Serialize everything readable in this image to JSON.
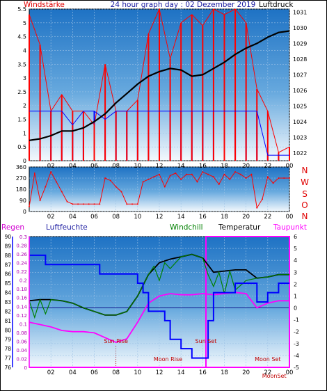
{
  "chart_data": [
    {
      "type": "line",
      "title": "24 hour graph day : 02 Dezember 2019",
      "left_axis_label": "Windstärke",
      "right_axis_label": "Luftdruck",
      "left_ylim": [
        0,
        5.5
      ],
      "left_ticks": [
        "0",
        "0.5",
        "1",
        "1.5",
        "2",
        "2.5",
        "3",
        "3.5",
        "4",
        "4.5",
        "5",
        "5.5"
      ],
      "right_ylim": [
        1021.5,
        1031.2
      ],
      "right_ticks": [
        "1022",
        "1023",
        "1024",
        "1025",
        "1026",
        "1027",
        "1028",
        "1029",
        "1030",
        "1031"
      ],
      "x_ticks": [
        "02",
        "04",
        "06",
        "08",
        "10",
        "12",
        "14",
        "16",
        "18",
        "20",
        "22",
        "00"
      ],
      "xlim_hours": [
        0,
        24
      ],
      "series": [
        {
          "color": "#000000",
          "axis": "right",
          "x": [
            0,
            1,
            2,
            3,
            4,
            5,
            6,
            7,
            8,
            9,
            10,
            11,
            12,
            13,
            14,
            15,
            16,
            17,
            18,
            19,
            20,
            21,
            22,
            23,
            24
          ],
          "y": [
            1022.8,
            1022.9,
            1023.1,
            1023.4,
            1023.4,
            1023.6,
            1024.0,
            1024.5,
            1025.2,
            1025.8,
            1026.4,
            1026.9,
            1027.2,
            1027.4,
            1027.3,
            1026.9,
            1027.0,
            1027.4,
            1027.8,
            1028.3,
            1028.7,
            1029.0,
            1029.4,
            1029.7,
            1029.8
          ]
        },
        {
          "color": "#ff0000",
          "axis": "left",
          "x": [
            0,
            1,
            2,
            3,
            4,
            5,
            6,
            7,
            8,
            9,
            10,
            11,
            12,
            13,
            14,
            15,
            16,
            17,
            18,
            19,
            20,
            21,
            22,
            23,
            24
          ],
          "y": [
            5.3,
            4.2,
            1.8,
            2.4,
            1.8,
            1.8,
            1.3,
            3.5,
            1.8,
            1.8,
            2.2,
            4.6,
            5.5,
            3.7,
            5.0,
            5.3,
            4.9,
            5.5,
            5.3,
            5.5,
            5.0,
            2.6,
            1.8,
            0.3,
            0.5
          ]
        },
        {
          "color": "#0000ff",
          "axis": "left",
          "x": [
            0,
            1,
            2,
            3,
            4,
            5,
            6,
            7,
            8,
            9,
            10,
            11,
            12,
            13,
            14,
            15,
            16,
            17,
            18,
            19,
            20,
            21,
            22,
            23,
            24
          ],
          "y": [
            1.8,
            1.8,
            1.8,
            1.8,
            1.3,
            1.8,
            1.8,
            1.5,
            1.8,
            1.8,
            1.8,
            1.8,
            1.8,
            1.8,
            1.8,
            1.8,
            1.8,
            1.8,
            1.8,
            1.8,
            1.8,
            1.8,
            0.2,
            0.2,
            0.2
          ]
        }
      ]
    },
    {
      "type": "line",
      "left_ylim": [
        0,
        360
      ],
      "left_ticks": [
        "0",
        "90",
        "180",
        "270",
        "360"
      ],
      "right_labels": [
        "N",
        "W",
        "S",
        "O",
        "N"
      ],
      "x_ticks": [
        "02",
        "04",
        "06",
        "08",
        "10",
        "12",
        "14",
        "16",
        "18",
        "20",
        "22",
        "00"
      ],
      "xlim_hours": [
        0,
        24
      ],
      "series": [
        {
          "color": "#ff0000",
          "x": [
            0,
            0.5,
            1,
            1.5,
            2,
            2.5,
            3,
            3.5,
            4,
            4.5,
            5,
            5.5,
            6,
            6.5,
            7,
            7.5,
            8,
            8.5,
            9,
            9.5,
            10,
            10.5,
            11,
            11.5,
            12,
            12.5,
            13,
            13.5,
            14,
            14.5,
            15,
            15.5,
            16,
            16.5,
            17,
            17.5,
            18,
            18.5,
            19,
            19.5,
            20,
            20.5,
            21,
            21.5,
            22,
            22.5,
            23,
            23.5,
            24
          ],
          "y": [
            40,
            310,
            90,
            200,
            320,
            240,
            160,
            80,
            60,
            60,
            60,
            60,
            60,
            60,
            270,
            250,
            200,
            160,
            60,
            60,
            60,
            240,
            260,
            280,
            300,
            200,
            290,
            310,
            260,
            300,
            300,
            240,
            320,
            300,
            280,
            220,
            300,
            260,
            320,
            300,
            270,
            300,
            30,
            100,
            280,
            230,
            270,
            270,
            270
          ]
        }
      ]
    },
    {
      "type": "line",
      "legend": [
        "Regen",
        "Luftfeuchte",
        "Windchill",
        "Temperatur",
        "Taupunkt"
      ],
      "rain_ylim": [
        0,
        0.3
      ],
      "rain_ticks": [
        "0",
        "0.02",
        "0.04",
        "0.06",
        "0.08",
        "0.1",
        "0.12",
        "0.14",
        "0.16",
        "0.18",
        "0.2",
        "0.22",
        "0.24",
        "0.26",
        "0.28",
        "0.3"
      ],
      "humidity_ylim": [
        76,
        90
      ],
      "humidity_ticks": [
        "76",
        "77",
        "78",
        "79",
        "80",
        "81",
        "82",
        "83",
        "84",
        "85",
        "86",
        "87",
        "88",
        "89",
        "90"
      ],
      "temp_ylim": [
        -5,
        6
      ],
      "temp_ticks": [
        "-5",
        "-4",
        "-3",
        "-2",
        "-1",
        "0",
        "1",
        "2",
        "3",
        "4",
        "5",
        "6"
      ],
      "x_ticks": [
        "02",
        "04",
        "06",
        "08",
        "10",
        "12",
        "14",
        "16",
        "18",
        "20",
        "22",
        "00"
      ],
      "xlim_hours": [
        0,
        24
      ],
      "annotations": [
        {
          "label": "Sun Rise",
          "hour": 8.0
        },
        {
          "label": "Moon Rise",
          "hour": 12.8
        },
        {
          "label": "Sun Set",
          "hour": 16.3
        },
        {
          "label": "Moon Set",
          "hour": 22.0
        },
        {
          "label": "MoonSet",
          "hour": 22.6
        }
      ],
      "series": [
        {
          "name": "Temperatur",
          "color": "#000000",
          "x": [
            0,
            1,
            2,
            3,
            4,
            5,
            6,
            7,
            8,
            9,
            10,
            11,
            12,
            13,
            14,
            15,
            16,
            17,
            18,
            19,
            20,
            21,
            22,
            23,
            24
          ],
          "y": [
            0.6,
            0.7,
            0.7,
            0.6,
            0.4,
            0.0,
            -0.3,
            -0.6,
            -0.6,
            -0.3,
            1.0,
            2.8,
            3.8,
            4.1,
            4.3,
            4.5,
            4.2,
            3.0,
            3.1,
            3.2,
            3.2,
            2.5,
            2.6,
            2.8,
            2.8
          ]
        },
        {
          "name": "Windchill",
          "color": "#008000",
          "x": [
            0,
            0.5,
            1,
            1.5,
            2,
            3,
            4,
            5,
            6,
            7,
            8,
            9,
            10,
            11,
            11.5,
            12,
            12.5,
            13,
            14,
            15,
            16,
            16.5,
            17,
            17.5,
            18,
            18.5,
            19,
            20,
            21,
            22,
            23,
            24
          ],
          "y": [
            0.6,
            -0.8,
            0.7,
            -0.5,
            0.7,
            0.6,
            0.4,
            0.0,
            -0.3,
            -0.6,
            -0.6,
            -0.3,
            1.0,
            2.8,
            3.5,
            2.3,
            3.8,
            3.3,
            4.3,
            4.5,
            4.2,
            2.8,
            1.8,
            3.0,
            1.2,
            3.1,
            1.5,
            2.3,
            2.5,
            2.6,
            2.8,
            2.8
          ]
        },
        {
          "name": "Taupunkt",
          "color": "#ff00ff",
          "x": [
            0,
            1,
            2,
            3,
            4,
            5,
            6,
            7,
            8,
            9,
            10,
            11,
            12,
            13,
            14,
            15,
            16,
            17,
            18,
            19,
            20,
            21,
            22,
            23,
            24
          ],
          "y": [
            -1.2,
            -1.4,
            -1.6,
            -1.9,
            -2.0,
            -2.0,
            -2.1,
            -2.5,
            -2.9,
            -2.6,
            -1.2,
            0.4,
            1.0,
            1.2,
            1.1,
            1.1,
            1.2,
            1.1,
            1.2,
            1.3,
            1.2,
            0.0,
            0.4,
            0.6,
            0.6
          ]
        },
        {
          "name": "Luftfeuchte",
          "color": "#0000ff",
          "x": [
            0,
            1,
            1.5,
            2,
            3,
            4,
            5,
            6,
            6.5,
            7,
            8,
            8.5,
            9,
            10,
            10.5,
            11,
            12,
            12.5,
            13,
            14,
            15,
            16,
            16.5,
            17,
            18,
            19,
            20,
            21,
            22,
            23,
            24
          ],
          "y": [
            88,
            88,
            87,
            87,
            87,
            87,
            87,
            87,
            86,
            86,
            86,
            86,
            86,
            85,
            84,
            82,
            82,
            81,
            79,
            78,
            77,
            77,
            81,
            84,
            84,
            85,
            85,
            83,
            84,
            85,
            85
          ]
        }
      ]
    }
  ]
}
